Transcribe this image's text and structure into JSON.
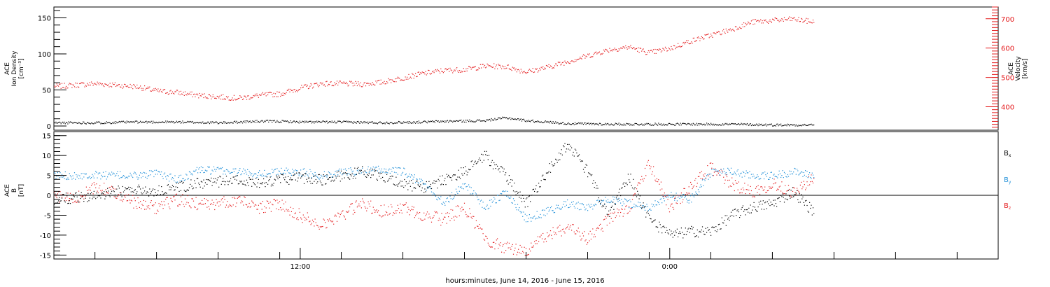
{
  "chart_data": [
    {
      "type": "scatter",
      "panel": "top",
      "ylabel_left": [
        "ACE",
        "Ion Density",
        "[cm⁻³]"
      ],
      "ylabel_right": [
        "ACE",
        "Velocity",
        "[km/s]"
      ],
      "ylim_left": [
        0,
        165
      ],
      "ylim_right": [
        320,
        740
      ],
      "yticks_left": [
        "0",
        "50",
        "100",
        "150"
      ],
      "yticks_right": [
        "400",
        "500",
        "600",
        "700"
      ],
      "series": [
        {
          "color": "#000000",
          "axis": "left",
          "points": [
            [
              0,
              5
            ],
            [
              2,
              5
            ],
            [
              4,
              6
            ],
            [
              6,
              6
            ],
            [
              8,
              5
            ],
            [
              9,
              6
            ],
            [
              10,
              7
            ],
            [
              11,
              7
            ],
            [
              12,
              6
            ],
            [
              14,
              6
            ],
            [
              16,
              5
            ],
            [
              18,
              6
            ],
            [
              19,
              7
            ],
            [
              21,
              8
            ],
            [
              22,
              12
            ],
            [
              23,
              8
            ],
            [
              25,
              4
            ],
            [
              27,
              3
            ],
            [
              29,
              3
            ],
            [
              31,
              3
            ],
            [
              33,
              3
            ],
            [
              35,
              2
            ],
            [
              37,
              2
            ]
          ]
        },
        {
          "color": "#e41a1c",
          "axis": "right",
          "points": [
            [
              0,
              470
            ],
            [
              2,
              480
            ],
            [
              4,
              470
            ],
            [
              5,
              455
            ],
            [
              6,
              450
            ],
            [
              7,
              440
            ],
            [
              8,
              435
            ],
            [
              9,
              430
            ],
            [
              10,
              440
            ],
            [
              11,
              445
            ],
            [
              12,
              465
            ],
            [
              13,
              480
            ],
            [
              14,
              480
            ],
            [
              15,
              478
            ],
            [
              16,
              485
            ],
            [
              17,
              500
            ],
            [
              18,
              515
            ],
            [
              19,
              525
            ],
            [
              20,
              528
            ],
            [
              21,
              540
            ],
            [
              22,
              538
            ],
            [
              23,
              520
            ],
            [
              24,
              535
            ],
            [
              25,
              555
            ],
            [
              26,
              575
            ],
            [
              27,
              595
            ],
            [
              28,
              605
            ],
            [
              29,
              585
            ],
            [
              30,
              600
            ],
            [
              31,
              625
            ],
            [
              32,
              645
            ],
            [
              33,
              665
            ],
            [
              34,
              690
            ],
            [
              35,
              695
            ],
            [
              36,
              700
            ],
            [
              37,
              690
            ]
          ]
        }
      ]
    },
    {
      "type": "scatter",
      "panel": "bottom",
      "ylabel": [
        "ACE",
        "B",
        "[nT]"
      ],
      "ylim": [
        -16,
        16
      ],
      "yticks": [
        "-15",
        "-10",
        "-5",
        "0",
        "5",
        "10",
        "15"
      ],
      "legend": [
        "Bx",
        "By",
        "Bz"
      ],
      "xlabel": "hours:minutes, June 14, 2016 - June 15, 2016",
      "xticks": [
        "12:00",
        "0:00"
      ],
      "xlim": [
        0,
        46
      ],
      "xtick_values": [
        12,
        30
      ],
      "series": [
        {
          "name": "Bx",
          "color": "#000000",
          "points": [
            [
              0,
              -1
            ],
            [
              2,
              0
            ],
            [
              3,
              1
            ],
            [
              4,
              1.5
            ],
            [
              5,
              1
            ],
            [
              6,
              2
            ],
            [
              7,
              3
            ],
            [
              8,
              3.5
            ],
            [
              9,
              4
            ],
            [
              10,
              3
            ],
            [
              11,
              4
            ],
            [
              12,
              4.5
            ],
            [
              13,
              4
            ],
            [
              14,
              5
            ],
            [
              15,
              6
            ],
            [
              16,
              5
            ],
            [
              17,
              3
            ],
            [
              18,
              2
            ],
            [
              19,
              4
            ],
            [
              20,
              6
            ],
            [
              21,
              10
            ],
            [
              22,
              5
            ],
            [
              23,
              -2
            ],
            [
              24,
              6
            ],
            [
              25,
              13
            ],
            [
              26,
              6
            ],
            [
              27,
              -5
            ],
            [
              28,
              5
            ],
            [
              29,
              -6
            ],
            [
              30,
              -10
            ],
            [
              31,
              -9
            ],
            [
              32,
              -9
            ],
            [
              33,
              -5
            ],
            [
              34,
              -3
            ],
            [
              35,
              -2
            ],
            [
              36,
              1
            ],
            [
              37,
              -4
            ]
          ]
        },
        {
          "name": "By",
          "color": "#1f8fd8",
          "points": [
            [
              0,
              5
            ],
            [
              2,
              5.2
            ],
            [
              4,
              5
            ],
            [
              5,
              5.5
            ],
            [
              6,
              4
            ],
            [
              6.5,
              5
            ],
            [
              7,
              6.5
            ],
            [
              9,
              6
            ],
            [
              10,
              5.5
            ],
            [
              11,
              6
            ],
            [
              12,
              6
            ],
            [
              13,
              5
            ],
            [
              14,
              6
            ],
            [
              16,
              6.5
            ],
            [
              17,
              6
            ],
            [
              18,
              3
            ],
            [
              19,
              -2
            ],
            [
              20,
              3
            ],
            [
              21,
              -3
            ],
            [
              22,
              1
            ],
            [
              23,
              -6
            ],
            [
              24,
              -4
            ],
            [
              25,
              -2
            ],
            [
              26,
              -3
            ],
            [
              27,
              -1
            ],
            [
              28,
              -2
            ],
            [
              29,
              -3
            ],
            [
              30,
              0
            ],
            [
              31,
              -1
            ],
            [
              32,
              6
            ],
            [
              33,
              6
            ],
            [
              34,
              5
            ],
            [
              35,
              5
            ],
            [
              36,
              6
            ],
            [
              37,
              5
            ]
          ]
        },
        {
          "name": "Bz",
          "color": "#e41a1c",
          "points": [
            [
              0,
              0
            ],
            [
              1,
              -1
            ],
            [
              2,
              2
            ],
            [
              3,
              1
            ],
            [
              4,
              -2
            ],
            [
              5,
              -3
            ],
            [
              6,
              -1
            ],
            [
              7,
              -2
            ],
            [
              8,
              -2
            ],
            [
              9,
              -1
            ],
            [
              10,
              -3
            ],
            [
              11,
              -2
            ],
            [
              12,
              -5
            ],
            [
              13,
              -7
            ],
            [
              14,
              -5
            ],
            [
              15,
              -2
            ],
            [
              16,
              -4
            ],
            [
              17,
              -3
            ],
            [
              18,
              -5
            ],
            [
              19,
              -6
            ],
            [
              20,
              -3
            ],
            [
              21,
              -11
            ],
            [
              22,
              -13
            ],
            [
              23,
              -14
            ],
            [
              24,
              -10
            ],
            [
              25,
              -8
            ],
            [
              26,
              -11
            ],
            [
              27,
              -6
            ],
            [
              28,
              -3
            ],
            [
              29,
              8
            ],
            [
              30,
              -3
            ],
            [
              31,
              2
            ],
            [
              32,
              7
            ],
            [
              33,
              3
            ],
            [
              34,
              1
            ],
            [
              35,
              3
            ],
            [
              36,
              1
            ],
            [
              37,
              4
            ]
          ]
        }
      ]
    }
  ]
}
